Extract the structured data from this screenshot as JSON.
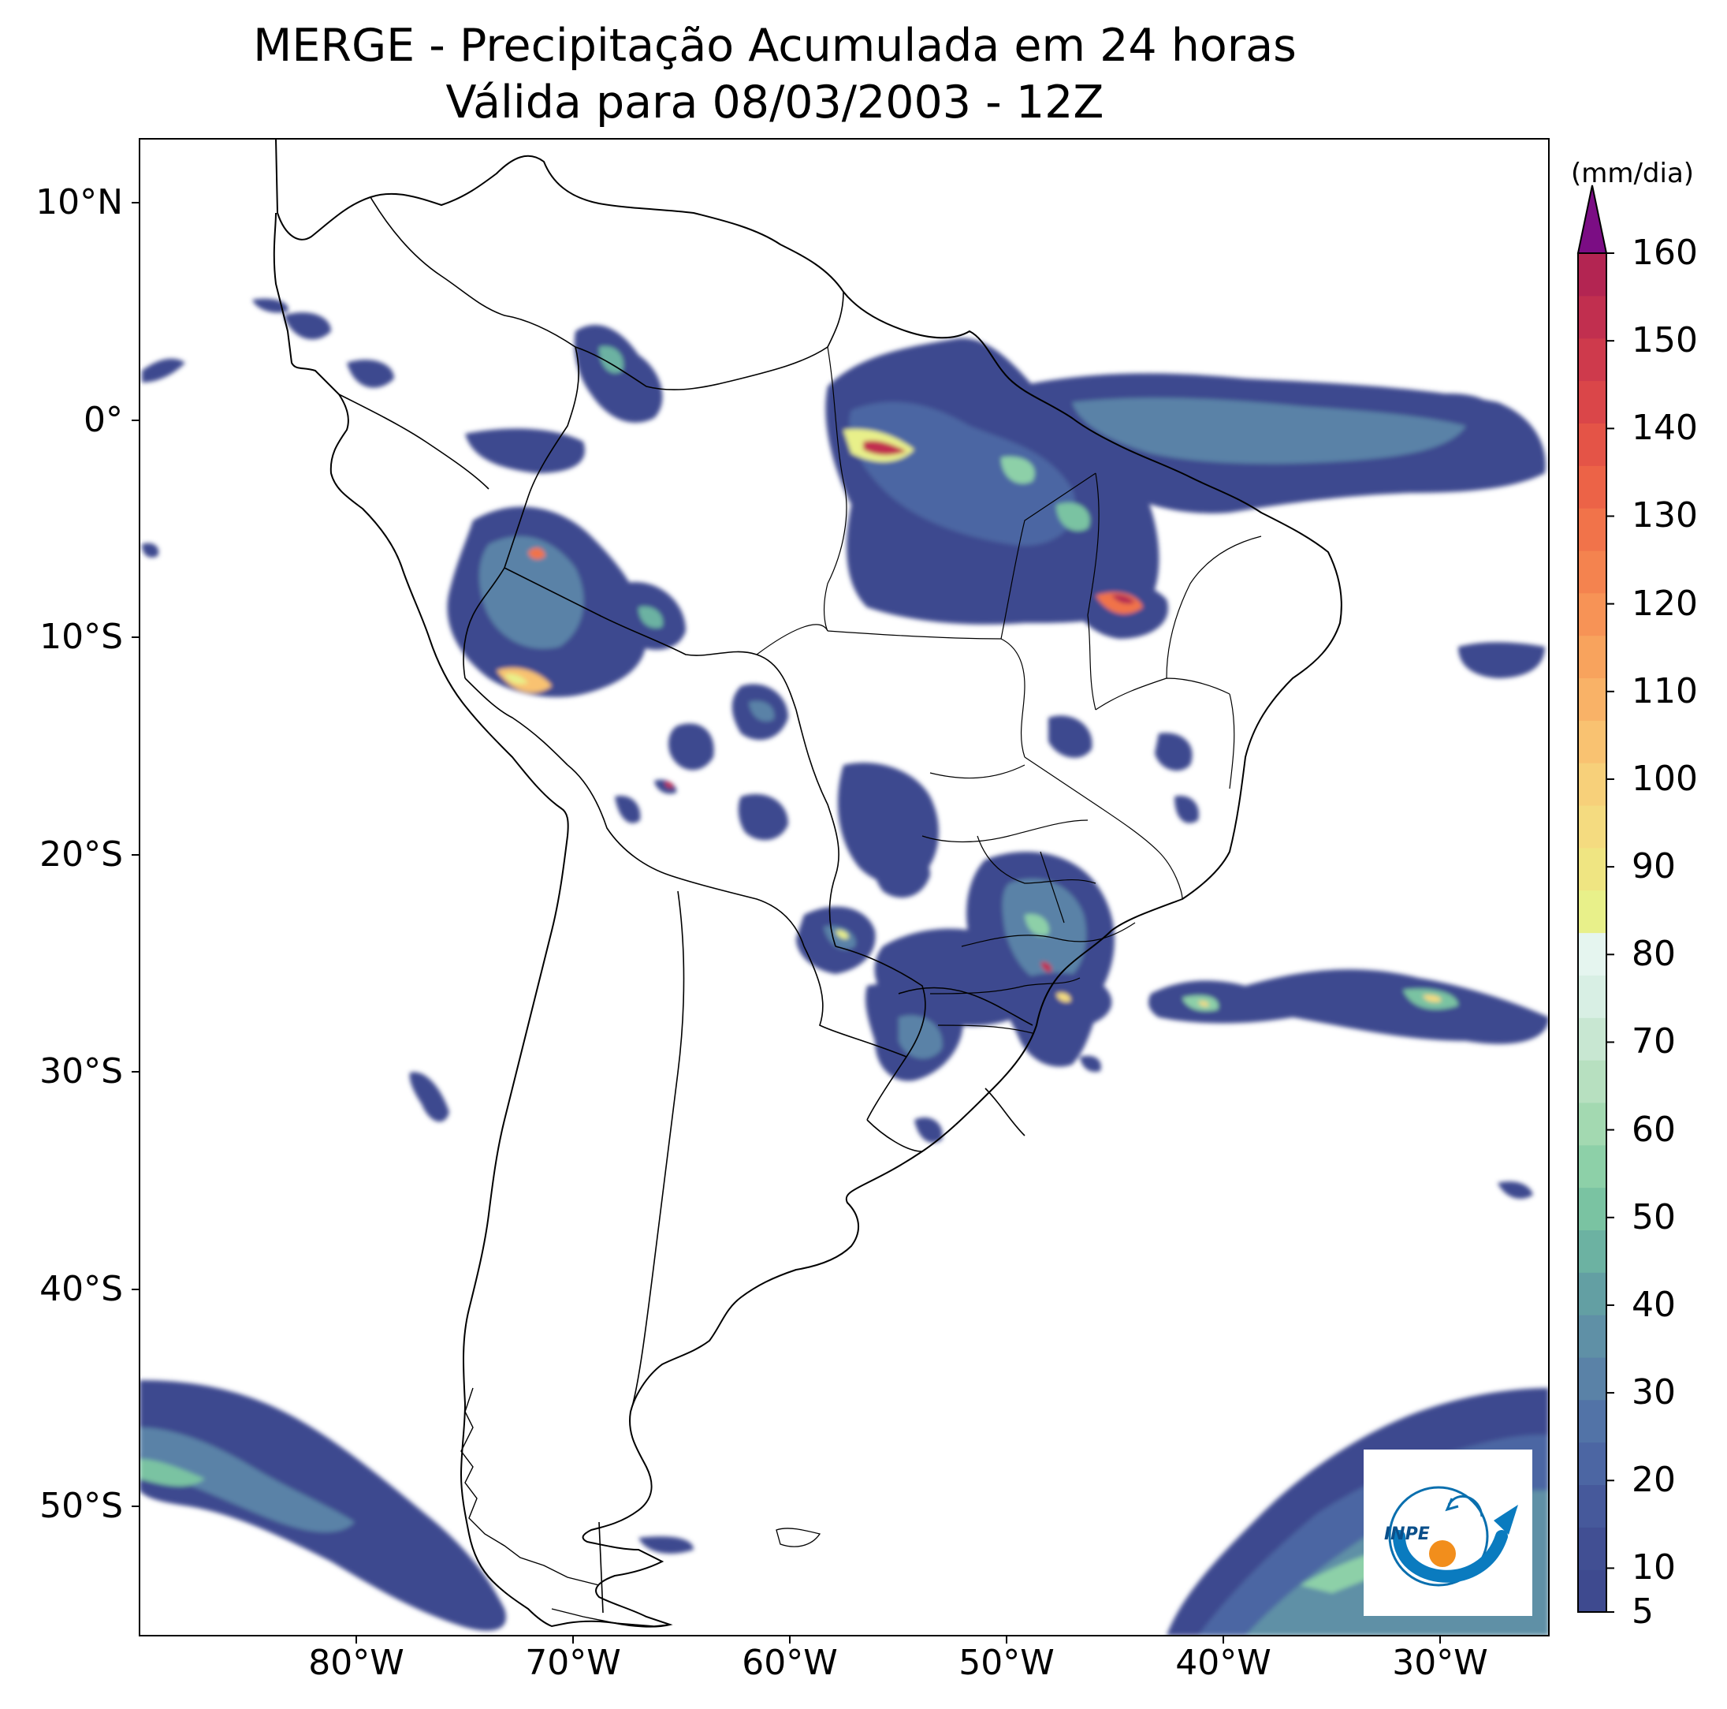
{
  "title": {
    "line1": "MERGE - Precipitação Acumulada em 24 horas",
    "line2": "Válida para 08/03/2003 - 12Z"
  },
  "axes": {
    "lon_ticks": [
      "80°W",
      "70°W",
      "60°W",
      "50°W",
      "40°W",
      "30°W"
    ],
    "lat_ticks": [
      "10°N",
      "0°",
      "10°S",
      "20°S",
      "30°S",
      "40°S",
      "50°S"
    ],
    "lon_range_deg": [
      -90,
      -25
    ],
    "lat_range_deg": [
      -56,
      13
    ]
  },
  "colorbar": {
    "unit": "(mm/dia)",
    "tick_labels": [
      "5",
      "10",
      "20",
      "30",
      "40",
      "50",
      "60",
      "70",
      "80",
      "90",
      "100",
      "110",
      "120",
      "130",
      "140",
      "150",
      "160"
    ],
    "extend": "max",
    "extend_color": "#7b0d84",
    "colors": [
      "#3e4a8f",
      "#414f93",
      "#46599b",
      "#4c66a3",
      "#5273a7",
      "#5a82a7",
      "#5f90a6",
      "#639fa3",
      "#6cb2a2",
      "#7ac3a2",
      "#8dd0a8",
      "#a3d9b1",
      "#b7e0c0",
      "#c8e7d2",
      "#d8efe4",
      "#e5f5ef",
      "#e8f08a",
      "#efe582",
      "#f4db80",
      "#f7d07a",
      "#f9c271",
      "#f9b267",
      "#f8a35d",
      "#f79356",
      "#f4834f",
      "#f1734a",
      "#ec6347",
      "#e45447",
      "#da4649",
      "#ce3a4c",
      "#c12f4f",
      "#b32552"
    ]
  },
  "logo": {
    "name": "INPE",
    "text": "INPE"
  },
  "map": {
    "features": [
      "south-america-coastline",
      "country-borders",
      "brazil-state-borders",
      "precipitation-field"
    ],
    "max_precip_locations": [
      "north-para-state",
      "south-maranhao",
      "parana-santa-catarina",
      "south-peru"
    ]
  }
}
